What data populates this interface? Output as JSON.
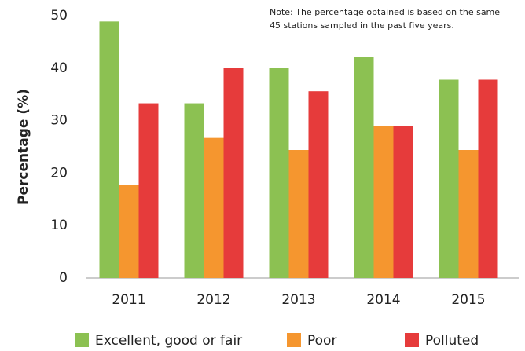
{
  "chart_data": {
    "type": "bar",
    "y_label": "Percentage (%)",
    "note": [
      "Note: The percentage obtained is based on the same",
      "45 stations sampled in the past five years."
    ],
    "categories": [
      "2011",
      "2012",
      "2013",
      "2014",
      "2015"
    ],
    "series": [
      {
        "name": "Excellent, good or fair",
        "color": "#8cc152",
        "values": [
          48.9,
          33.3,
          40.0,
          42.2,
          37.8
        ]
      },
      {
        "name": "Poor",
        "color": "#f5962f",
        "values": [
          17.8,
          26.7,
          24.4,
          28.9,
          24.4
        ]
      },
      {
        "name": "Polluted",
        "color": "#e63b3b",
        "values": [
          33.3,
          40.0,
          35.6,
          28.9,
          37.8
        ]
      }
    ],
    "ylim": [
      0,
      50
    ],
    "yticks": [
      0,
      10,
      20,
      30,
      40,
      50
    ],
    "grid": false
  }
}
